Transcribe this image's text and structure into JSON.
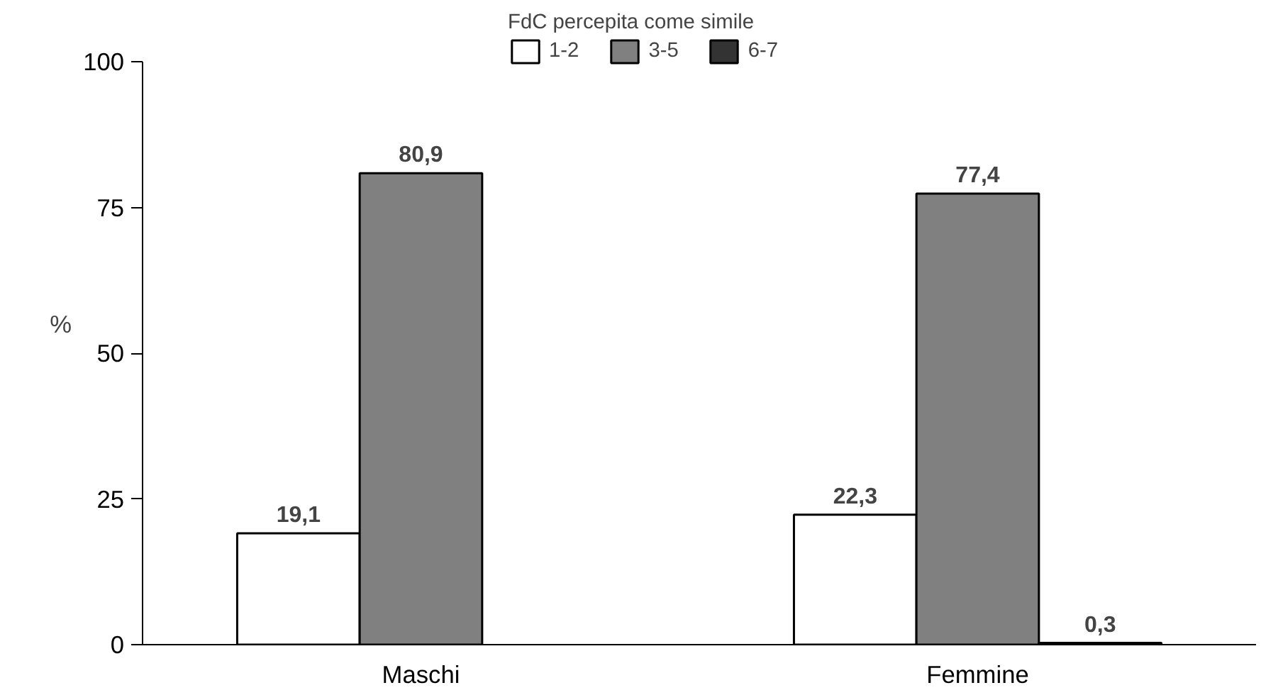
{
  "chart_data": {
    "type": "bar",
    "ylabel": "%",
    "legend_title": "FdC percepita come simile",
    "categories": [
      "Maschi",
      "Femmine"
    ],
    "series": [
      {
        "name": "1-2",
        "color": "#ffffff",
        "values": [
          19.1,
          22.3
        ],
        "value_labels": [
          "19,1",
          "22,3"
        ]
      },
      {
        "name": "3-5",
        "color": "#808080",
        "values": [
          80.9,
          77.4
        ],
        "value_labels": [
          "80,9",
          "77,4"
        ]
      },
      {
        "name": "6-7",
        "color": "#333333",
        "values": [
          null,
          0.3
        ],
        "value_labels": [
          null,
          "0,3"
        ]
      }
    ],
    "ylim": [
      0,
      100
    ],
    "yticks": [
      0,
      25,
      50,
      75,
      100
    ],
    "grid": false,
    "legend": "top"
  }
}
